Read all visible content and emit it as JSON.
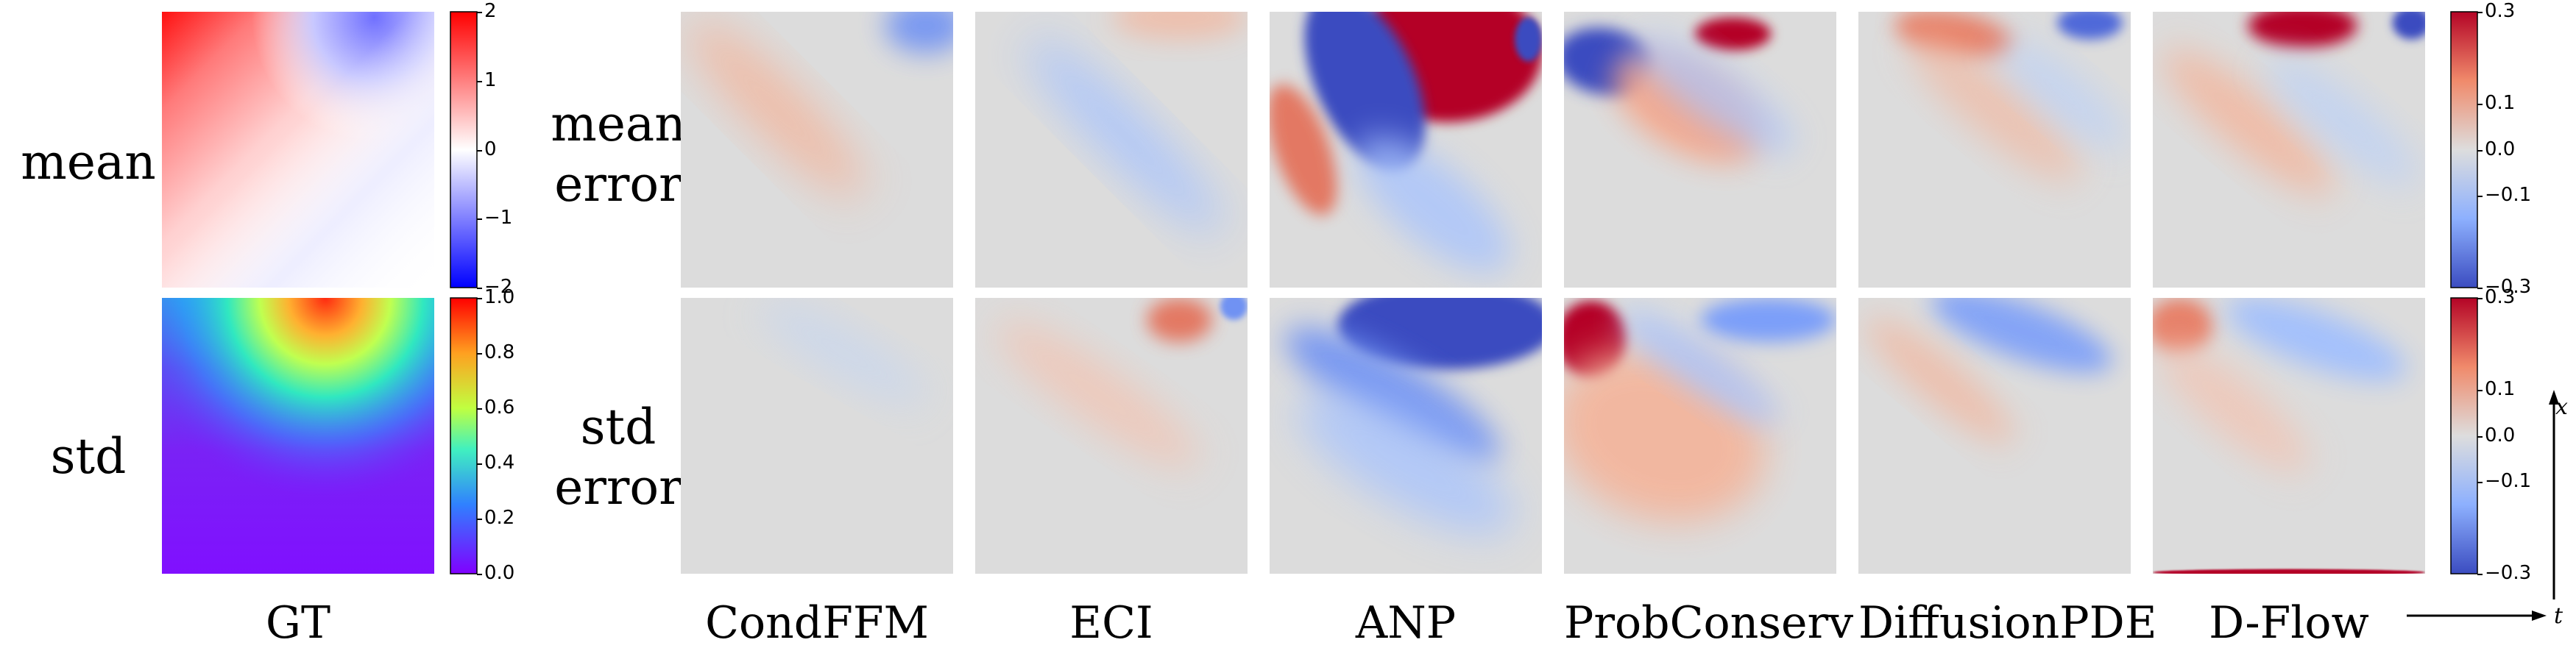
{
  "row_labels": {
    "mean": "mean",
    "std": "std",
    "mean_error": "mean\nerror",
    "std_error": "std\nerror"
  },
  "columns": {
    "gt": "GT",
    "methods": [
      "CondFFM",
      "ECI",
      "ANP",
      "ProbConserv",
      "DiffusionPDE",
      "D-Flow"
    ]
  },
  "colorbars": {
    "gt_mean": {
      "ticks": [
        "2",
        "1",
        "0",
        "−1",
        "−2"
      ],
      "colormap": "bwr"
    },
    "gt_std": {
      "ticks": [
        "1.0",
        "0.8",
        "0.6",
        "0.4",
        "0.2",
        "0.0"
      ],
      "colormap": "rainbow"
    },
    "mean_error": {
      "ticks": [
        "0.3",
        "0.1",
        "0.0",
        "−0.1",
        "−0.3"
      ],
      "colormap": "coolwarm"
    },
    "std_error": {
      "ticks": [
        "0.3",
        "0.1",
        "0.0",
        "−0.1",
        "−0.3"
      ],
      "colormap": "coolwarm"
    }
  },
  "axes": {
    "x": "x",
    "t": "t"
  },
  "colors": {
    "neutral": "#dcdcdc",
    "red": "#b40426",
    "blue": "#3b4cc0"
  }
}
